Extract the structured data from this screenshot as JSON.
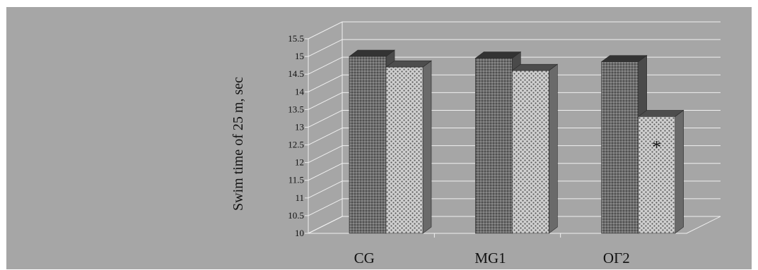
{
  "chart_data": {
    "type": "bar",
    "style": "3d-clustered-column",
    "title": "",
    "xlabel": "",
    "ylabel": "Swim time of  25  m, sec",
    "categories": [
      "CG",
      "MG1",
      "ОГ2"
    ],
    "series": [
      {
        "values": [
          15.0,
          14.95,
          14.85
        ]
      },
      {
        "values": [
          14.7,
          14.6,
          13.3
        ]
      }
    ],
    "annotations": [
      {
        "category": "ОГ2",
        "series_index": 1,
        "text": "*"
      }
    ],
    "ylim": [
      10,
      15.5
    ],
    "yticks": [
      "10",
      "10.5",
      "11",
      "11.5",
      "12",
      "12.5",
      "13",
      "13.5",
      "14",
      "14.5",
      "15",
      "15.5"
    ],
    "grid": true,
    "legend": "none",
    "colors": {
      "background": "#a6a6a6",
      "series_dark_face": "#6e6e6e",
      "series_light_face": "#c9c9c9",
      "grid": "#f0f0f0"
    }
  }
}
